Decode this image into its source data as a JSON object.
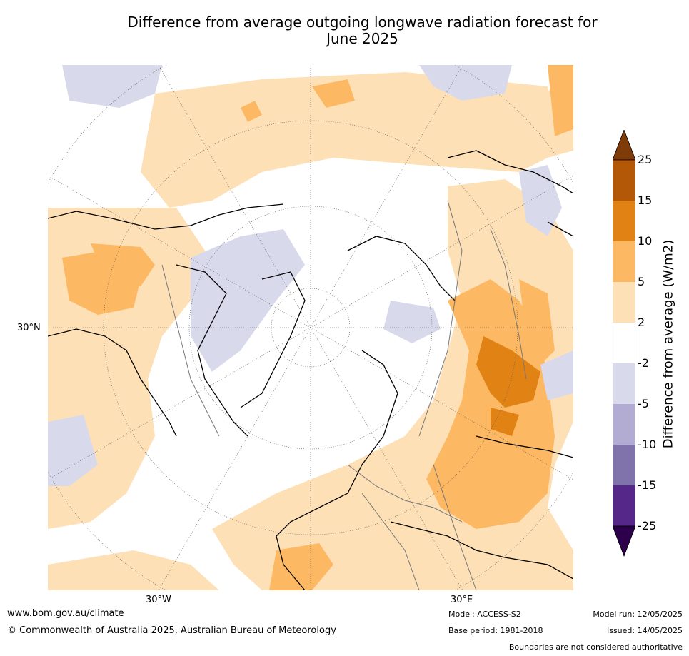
{
  "title_line1": "Difference from average outgoing longwave radiation forecast for",
  "title_line2": "June 2025",
  "map": {
    "projection": "north polar stereographic",
    "labels": {
      "lon_west": "30°W",
      "lon_east": "30°E",
      "lat": "30°N"
    }
  },
  "colorbar": {
    "label": "Difference from average (W/m2)",
    "ticks": [
      "25",
      "15",
      "10",
      "5",
      "2",
      "-2",
      "-5",
      "-10",
      "-15",
      "-25"
    ],
    "colors": {
      "extend_high": "#7f3b08",
      "15_25": "#b35806",
      "10_15": "#e08214",
      "5_10": "#fdb863",
      "2_5": "#fee0b6",
      "neutral": "#ffffff",
      "m2_m5": "#d8daeb",
      "m5_m10": "#b2abd2",
      "m10_m15": "#8073ac",
      "m15_m25": "#542788",
      "extend_low": "#2d004b"
    }
  },
  "footer": {
    "website": "www.bom.gov.au/climate",
    "copyright": "© Commonwealth of Australia 2025, Australian Bureau of Meteorology",
    "model": "Model: ACCESS-S2",
    "base_period": "Base period: 1981-2018",
    "model_run": "Model run: 12/05/2025",
    "issued": "Issued: 14/05/2025",
    "disclaimer": "Boundaries are not considered authoritative"
  }
}
